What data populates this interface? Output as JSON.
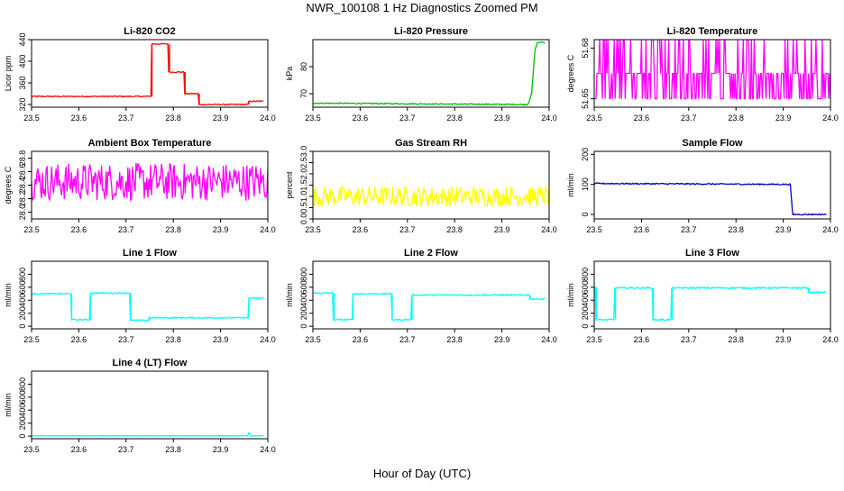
{
  "figure": {
    "title": "NWR_100108  1 Hz Diagnostics Zoomed PM",
    "xlabel": "Hour of Day (UTC)"
  },
  "chart_data": [
    {
      "type": "line",
      "title": "Li-820 CO2",
      "ylabel": "Licor ppm",
      "color": "#ff0000",
      "xlim": [
        23.5,
        24.0
      ],
      "ylim": [
        315,
        440
      ],
      "xticks": [
        23.5,
        23.6,
        23.7,
        23.8,
        23.9,
        24.0
      ],
      "yticks": [
        320,
        360,
        400,
        440
      ],
      "noise": 1,
      "series": [
        {
          "x": [
            23.5,
            23.755,
            23.755,
            23.792,
            23.792,
            23.825,
            23.825,
            23.855,
            23.855,
            23.96,
            23.96,
            23.99
          ],
          "y": [
            335,
            335,
            432,
            432,
            380,
            380,
            340,
            340,
            320,
            320,
            326,
            326
          ]
        }
      ]
    },
    {
      "type": "line",
      "title": "Li-820 Pressure",
      "ylabel": "kPa",
      "color": "#00bb00",
      "xlim": [
        23.5,
        24.0
      ],
      "ylim": [
        65,
        90
      ],
      "xticks": [
        23.5,
        23.6,
        23.7,
        23.8,
        23.9,
        24.0
      ],
      "yticks": [
        70,
        80
      ],
      "noise": 0.2,
      "series": [
        {
          "x": [
            23.5,
            23.955,
            23.963,
            23.97,
            23.975,
            23.99
          ],
          "y": [
            66.5,
            66,
            70,
            86,
            89,
            89
          ]
        }
      ]
    },
    {
      "type": "line",
      "title": "Li-820 Temperature",
      "ylabel": "degrees C",
      "color": "#ff00ff",
      "xlim": [
        23.5,
        24.0
      ],
      "ylim": [
        51.645,
        51.685
      ],
      "xticks": [
        23.5,
        23.6,
        23.7,
        23.8,
        23.9,
        24.0
      ],
      "yticks": [
        51.65,
        51.68
      ],
      "mode": "binary",
      "levels": [
        51.65,
        51.665,
        51.685
      ],
      "series": [
        {
          "x": [
            23.5,
            24.0
          ],
          "y": [
            51.665,
            51.665
          ]
        }
      ]
    },
    {
      "type": "line",
      "title": "Ambient Box Temperature",
      "ylabel": "degrees C",
      "color": "#ff00ff",
      "xlim": [
        23.5,
        24.0
      ],
      "ylim": [
        27.9,
        28.9
      ],
      "xticks": [
        23.5,
        23.6,
        23.7,
        23.8,
        23.9,
        24.0
      ],
      "yticks": [
        28.0,
        28.2,
        28.4,
        28.6,
        28.8
      ],
      "noise": 0.28,
      "series": [
        {
          "x": [
            23.5,
            24.0
          ],
          "y": [
            28.45,
            28.45
          ]
        }
      ]
    },
    {
      "type": "line",
      "title": "Gas Stream RH",
      "ylabel": "percent",
      "color": "#ffff00",
      "xlim": [
        23.5,
        24.0
      ],
      "ylim": [
        0,
        3.0
      ],
      "xticks": [
        23.5,
        23.6,
        23.7,
        23.8,
        23.9,
        24.0
      ],
      "yticks": [
        0.0,
        0.5,
        1.0,
        1.5,
        2.0,
        2.5,
        3.0
      ],
      "noise": 0.45,
      "series": [
        {
          "x": [
            23.5,
            24.0
          ],
          "y": [
            1.0,
            1.0
          ]
        }
      ]
    },
    {
      "type": "line",
      "title": "Sample Flow",
      "ylabel": "ml/min",
      "color": "#0000cc",
      "xlim": [
        23.5,
        24.0
      ],
      "ylim": [
        -15,
        210
      ],
      "xticks": [
        23.5,
        23.6,
        23.7,
        23.8,
        23.9,
        24.0
      ],
      "yticks": [
        0,
        100,
        200
      ],
      "noise": 2,
      "series": [
        {
          "x": [
            23.5,
            23.915,
            23.92,
            23.99
          ],
          "y": [
            103,
            100,
            0,
            0
          ]
        }
      ]
    },
    {
      "type": "line",
      "title": "Line 1 Flow",
      "ylabel": "ml/min",
      "color": "#00ffff",
      "xlim": [
        23.5,
        24.0
      ],
      "ylim": [
        -40,
        1000
      ],
      "xticks": [
        23.5,
        23.6,
        23.7,
        23.8,
        23.9,
        24.0
      ],
      "yticks": [
        0,
        200,
        400,
        600,
        800
      ],
      "noise": 10,
      "series": [
        {
          "x": [
            23.5,
            23.585,
            23.585,
            23.625,
            23.625,
            23.71,
            23.71,
            23.75,
            23.75,
            23.96,
            23.96,
            23.99
          ],
          "y": [
            500,
            500,
            100,
            100,
            510,
            510,
            90,
            90,
            130,
            130,
            430,
            430
          ]
        }
      ]
    },
    {
      "type": "line",
      "title": "Line 2 Flow",
      "ylabel": "ml/min",
      "color": "#00ffff",
      "xlim": [
        23.5,
        24.0
      ],
      "ylim": [
        -40,
        1000
      ],
      "xticks": [
        23.5,
        23.6,
        23.7,
        23.8,
        23.9,
        24.0
      ],
      "yticks": [
        0,
        200,
        400,
        600,
        800
      ],
      "noise": 10,
      "series": [
        {
          "x": [
            23.5,
            23.545,
            23.545,
            23.585,
            23.585,
            23.668,
            23.668,
            23.71,
            23.71,
            23.96,
            23.96,
            23.99
          ],
          "y": [
            510,
            510,
            100,
            100,
            500,
            500,
            100,
            100,
            480,
            480,
            420,
            420
          ]
        }
      ]
    },
    {
      "type": "line",
      "title": "Line 3 Flow",
      "ylabel": "ml/min",
      "color": "#00ffff",
      "xlim": [
        23.5,
        24.0
      ],
      "ylim": [
        -40,
        1000
      ],
      "xticks": [
        23.5,
        23.6,
        23.7,
        23.8,
        23.9,
        24.0
      ],
      "yticks": [
        0,
        200,
        400,
        600,
        800
      ],
      "noise": 12,
      "series": [
        {
          "x": [
            23.5,
            23.505,
            23.505,
            23.545,
            23.545,
            23.625,
            23.625,
            23.665,
            23.665,
            23.955,
            23.955,
            23.99
          ],
          "y": [
            600,
            600,
            100,
            100,
            590,
            590,
            100,
            100,
            590,
            590,
            520,
            520
          ]
        }
      ]
    },
    {
      "type": "line",
      "title": "Line 4 (LT) Flow",
      "ylabel": "ml/min",
      "color": "#00ffff",
      "xlim": [
        23.5,
        24.0
      ],
      "ylim": [
        -40,
        1000
      ],
      "xticks": [
        23.5,
        23.6,
        23.7,
        23.8,
        23.9,
        24.0
      ],
      "yticks": [
        0,
        200,
        400,
        600,
        800
      ],
      "noise": 2,
      "series": [
        {
          "x": [
            23.5,
            23.957,
            23.96,
            23.963,
            23.99
          ],
          "y": [
            5,
            5,
            60,
            5,
            5
          ]
        }
      ]
    }
  ]
}
